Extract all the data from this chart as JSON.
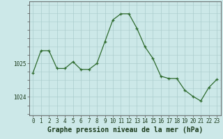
{
  "x": [
    0,
    1,
    2,
    3,
    4,
    5,
    6,
    7,
    8,
    9,
    10,
    11,
    12,
    13,
    14,
    15,
    16,
    17,
    18,
    19,
    20,
    21,
    22,
    23
  ],
  "y": [
    1024.72,
    1025.38,
    1025.38,
    1024.85,
    1024.85,
    1025.05,
    1024.82,
    1024.82,
    1025.0,
    1025.65,
    1026.3,
    1026.48,
    1026.48,
    1026.05,
    1025.5,
    1025.15,
    1024.62,
    1024.55,
    1024.55,
    1024.2,
    1024.02,
    1023.88,
    1024.28,
    1024.52
  ],
  "line_color": "#2d6a2d",
  "marker": "+",
  "bg_color": "#cce8e8",
  "grid_color": "#aacccc",
  "axis_color": "#555555",
  "xlabel": "Graphe pression niveau de la mer (hPa)",
  "xlabel_fontsize": 7,
  "ytick_labels": [
    "1024",
    "1025"
  ],
  "ytick_values": [
    1024.0,
    1025.0
  ],
  "ylim": [
    1023.45,
    1026.85
  ],
  "xlim": [
    -0.5,
    23.5
  ],
  "xtick_values": [
    0,
    1,
    2,
    3,
    4,
    5,
    6,
    7,
    8,
    9,
    10,
    11,
    12,
    13,
    14,
    15,
    16,
    17,
    18,
    19,
    20,
    21,
    22,
    23
  ],
  "tick_fontsize": 5.5,
  "linewidth": 0.9,
  "markersize": 3.5
}
